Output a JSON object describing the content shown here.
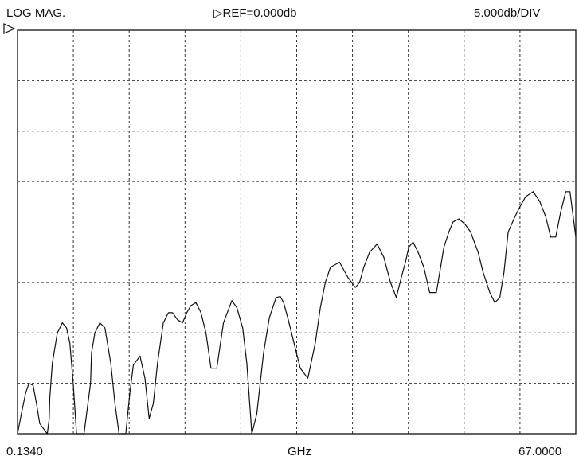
{
  "header": {
    "format": "LOG MAG.",
    "reference": "▷REF=0.000db",
    "scale": "5.000db/DIV"
  },
  "footer": {
    "start": "0.1340",
    "unit": "GHz",
    "stop": "67.0000"
  },
  "chart_data": {
    "type": "line",
    "title": "",
    "xlabel": "GHz",
    "ylabel": "",
    "xlim": [
      0.134,
      67.0
    ],
    "ylim": [
      -40,
      0
    ],
    "reference_level_db": 0,
    "scale_db_per_div": 5,
    "grid": true,
    "grid_divisions": {
      "x": 10,
      "y": 8
    },
    "series": [
      {
        "x": [
          0.134,
          0.6,
          1.1,
          1.5,
          2.0,
          2.4,
          2.8,
          3.7,
          3.93,
          4.0,
          4.3,
          4.9,
          5.5,
          6.0,
          6.4,
          6.8,
          7.2,
          8.1,
          8.88,
          9.0,
          9.4,
          10.0,
          10.6,
          11.3,
          11.8,
          12.3,
          13.1,
          13.58,
          14.0,
          14.8,
          15.4,
          15.9,
          16.4,
          16.9,
          17.6,
          18.2,
          18.7,
          19.3,
          19.9,
          20.4,
          20.9,
          21.5,
          22.1,
          22.7,
          23.3,
          24.0,
          24.8,
          25.8,
          26.4,
          27.1,
          27.6,
          28.2,
          28.8,
          29.6,
          30.3,
          31.1,
          31.6,
          32.0,
          32.5,
          33.4,
          34.0,
          34.9,
          35.8,
          36.4,
          37.0,
          37.6,
          38.7,
          39.7,
          40.6,
          41.1,
          41.6,
          42.3,
          43.2,
          44.0,
          44.8,
          45.5,
          46.1,
          46.6,
          47.0,
          47.5,
          48.1,
          48.8,
          49.5,
          50.3,
          50.8,
          51.2,
          51.8,
          52.3,
          53.0,
          53.7,
          54.4,
          55.3,
          55.9,
          56.7,
          57.3,
          57.9,
          58.4,
          58.9,
          59.7,
          60.3,
          61.0,
          61.9,
          62.7,
          63.4,
          64.0,
          64.6,
          65.2,
          65.8,
          66.3,
          67.0
        ],
        "y": [
          -40.0,
          -38.0,
          -36.0,
          -35.0,
          -35.2,
          -37.0,
          -39.0,
          -40.0,
          -38.5,
          -36.5,
          -33.0,
          -30.0,
          -29.0,
          -29.5,
          -31.0,
          -35.0,
          -40.0,
          -40.0,
          -35.0,
          -32.0,
          -30.0,
          -29.0,
          -29.5,
          -33.0,
          -37.0,
          -40.0,
          -40.0,
          -36.0,
          -33.2,
          -32.3,
          -34.5,
          -38.5,
          -37.0,
          -33.0,
          -29.0,
          -28.0,
          -28.0,
          -28.7,
          -29.0,
          -28.0,
          -27.3,
          -27.0,
          -28.0,
          -30.0,
          -33.5,
          -33.5,
          -29.0,
          -26.8,
          -27.5,
          -29.5,
          -33.0,
          -40.0,
          -38.0,
          -32.0,
          -28.5,
          -26.5,
          -26.4,
          -27.0,
          -28.5,
          -31.5,
          -33.5,
          -34.5,
          -31.0,
          -27.5,
          -25.0,
          -23.5,
          -23.0,
          -24.5,
          -25.5,
          -25.0,
          -23.5,
          -22.0,
          -21.2,
          -22.5,
          -25.0,
          -26.5,
          -24.5,
          -23.0,
          -21.5,
          -21.0,
          -22.0,
          -23.5,
          -26.0,
          -26.0,
          -23.5,
          -21.5,
          -20.0,
          -19.0,
          -18.7,
          -19.2,
          -20.0,
          -22.0,
          -24.0,
          -26.0,
          -27.0,
          -26.5,
          -24.0,
          -20.0,
          -18.5,
          -17.5,
          -16.5,
          -16.0,
          -17.0,
          -18.5,
          -20.5,
          -20.5,
          -18.0,
          -16.0,
          -16.0,
          -20.5
        ]
      }
    ]
  }
}
